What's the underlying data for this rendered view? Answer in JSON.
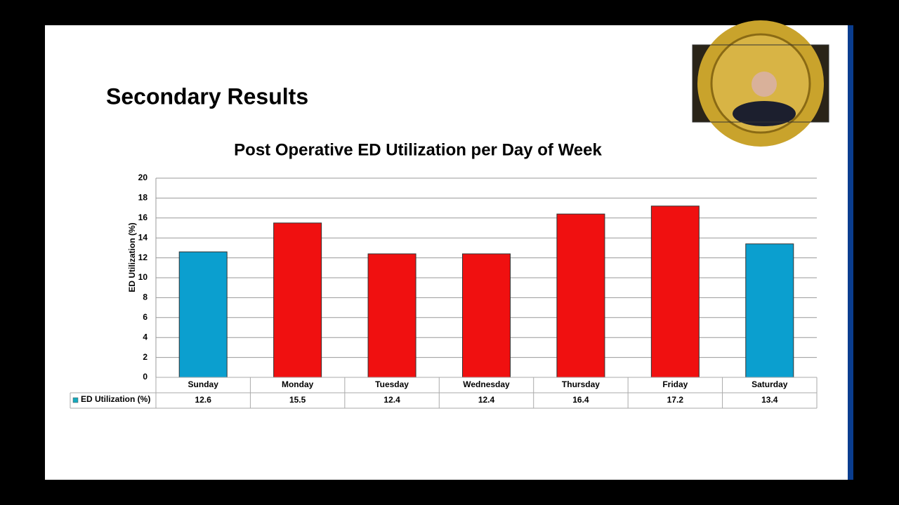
{
  "slide_title": "Secondary Results",
  "chart_data": {
    "type": "bar",
    "title": "Post Operative ED Utilization per Day of Week",
    "y_label": "ED Utilization (%)",
    "categories": [
      "Sunday",
      "Monday",
      "Tuesday",
      "Wednesday",
      "Thursday",
      "Friday",
      "Saturday"
    ],
    "series": [
      {
        "name": "ED Utilization (%)",
        "color": "#16a9bd",
        "colors": [
          "#0b9fcf",
          "#f01010",
          "#f01010",
          "#f01010",
          "#f01010",
          "#f01010",
          "#0b9fcf"
        ],
        "values": [
          12.6,
          15.5,
          12.4,
          12.4,
          16.4,
          17.2,
          13.4
        ]
      }
    ],
    "ylim": [
      0,
      20
    ],
    "yticks": [
      0,
      2,
      4,
      6,
      8,
      10,
      12,
      14,
      16,
      18,
      20
    ],
    "grid": true,
    "data_table": true
  }
}
